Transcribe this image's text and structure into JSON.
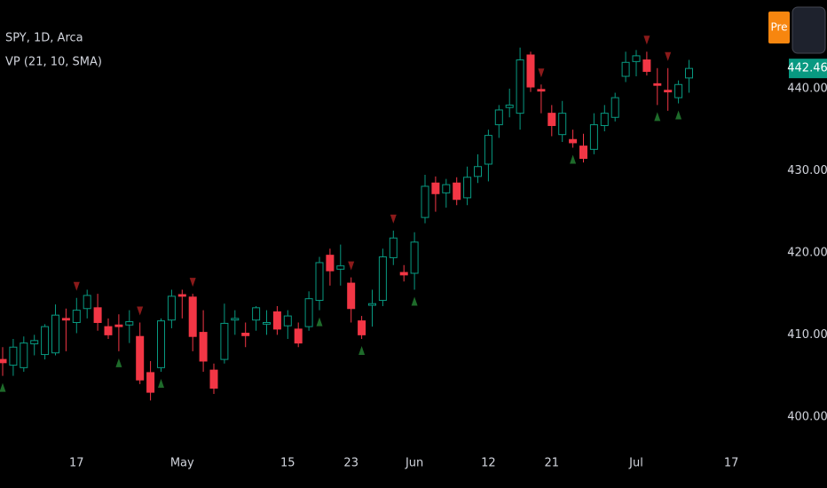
{
  "chart_data": {
    "type": "candlestick",
    "title": "SPY, 1D, Arca",
    "subtitle": "VP (21, 10, SMA)",
    "pre_button": "Pre",
    "categories": [
      null,
      null,
      null,
      null,
      null,
      null,
      null,
      "17",
      null,
      null,
      null,
      null,
      null,
      null,
      null,
      null,
      null,
      "May",
      null,
      null,
      null,
      null,
      null,
      null,
      null,
      null,
      null,
      "15",
      null,
      null,
      null,
      null,
      null,
      "23",
      null,
      null,
      null,
      null,
      null,
      "Jun",
      null,
      null,
      null,
      null,
      null,
      null,
      "12",
      null,
      null,
      null,
      null,
      null,
      "21",
      null,
      null,
      null,
      null,
      null,
      null,
      null,
      "Jul",
      null,
      null,
      null,
      null,
      null,
      null,
      null,
      null,
      "17"
    ],
    "series": [
      {
        "name": "open",
        "values": [
          407,
          406.3,
          406,
          408.9,
          407.6,
          407.8,
          412,
          411.5,
          413.2,
          413.3,
          411,
          411.2,
          411.2,
          409.8,
          405.4,
          406,
          411.8,
          414.9,
          414.6,
          410.3,
          405.7,
          407,
          411.8,
          410.2,
          411.8,
          411.3,
          412.8,
          411.1,
          410.7,
          411,
          414.2,
          419.7,
          418,
          416.3,
          411.7,
          413.6,
          414.2,
          419.4,
          417.6,
          417.5,
          424.3,
          428.5,
          427.3,
          428.5,
          426.7,
          429.3,
          430.8,
          435.6,
          437.7,
          437,
          444.1,
          439.9,
          437,
          434.4,
          433.8,
          433,
          432.6,
          435.5,
          436.5,
          441.5,
          443.3,
          443.5,
          440.6,
          439.8,
          438.9,
          441.3,
          null,
          null,
          null,
          null
        ]
      },
      {
        "name": "high",
        "values": [
          408.5,
          409.5,
          409.8,
          410,
          411.3,
          413.7,
          413.2,
          414.5,
          415.5,
          415,
          412,
          412.5,
          413,
          411.5,
          406.8,
          412,
          415.5,
          415.5,
          415,
          413,
          406.5,
          413.8,
          413,
          411.5,
          413.5,
          413,
          413.5,
          413,
          411.5,
          415.3,
          419.5,
          420.5,
          421,
          417,
          412.3,
          415.5,
          420.5,
          422.7,
          418.5,
          422.5,
          429.5,
          429.3,
          429,
          429.2,
          430.5,
          432,
          435,
          438,
          440,
          445,
          444.5,
          440.5,
          438,
          438.5,
          435,
          434.5,
          437,
          438,
          439.5,
          444.5,
          444.7,
          444.5,
          442.5,
          442.5,
          441,
          443.5,
          null,
          null,
          null,
          null
        ]
      },
      {
        "name": "low",
        "values": [
          405,
          405,
          405.5,
          407.5,
          407,
          407.5,
          408,
          410.2,
          412,
          410.5,
          409.5,
          408,
          409,
          404,
          402,
          405.5,
          410.8,
          412,
          408,
          405.5,
          402.8,
          406.5,
          410,
          408.5,
          410.5,
          410,
          410,
          409.5,
          408.5,
          410.5,
          413,
          416,
          416,
          411.5,
          409.5,
          411,
          413.5,
          418.5,
          416.5,
          415.5,
          423.6,
          425,
          425.5,
          425.8,
          425.8,
          428.5,
          428.7,
          434,
          436.5,
          435,
          439.6,
          437,
          434.2,
          433.5,
          432.8,
          431,
          432,
          434.8,
          436,
          440.8,
          441.5,
          441.6,
          438,
          437.3,
          438.2,
          439.5,
          null,
          null,
          null,
          null
        ]
      },
      {
        "name": "close",
        "values": [
          406.6,
          408.5,
          409,
          409.3,
          411,
          412.4,
          411.8,
          413,
          414.8,
          411.5,
          410,
          411,
          411.6,
          404.5,
          403,
          411.7,
          414.7,
          414.7,
          409.8,
          406.8,
          403.5,
          411.4,
          412,
          409.9,
          413.3,
          411.5,
          410.7,
          412.3,
          409,
          414.4,
          418.8,
          417.8,
          418.4,
          413.2,
          410,
          413.8,
          419.5,
          421.8,
          417.3,
          421.3,
          428.1,
          427.2,
          428.3,
          426.5,
          429.2,
          430.5,
          434.3,
          437.4,
          438,
          443.5,
          440.2,
          439.7,
          435.5,
          437,
          433.4,
          431.5,
          435.6,
          437,
          438.9,
          443.2,
          444,
          442.1,
          440.4,
          439.6,
          440.5,
          442.46,
          null,
          null,
          null,
          null
        ]
      }
    ],
    "signals": {
      "down": [
        7,
        13,
        18,
        33,
        37,
        51,
        61,
        63
      ],
      "up": [
        0,
        11,
        15,
        30,
        34,
        39,
        54,
        62,
        64
      ]
    },
    "up_color": "#089981",
    "down_color": "#f23645",
    "signal_down_color": "#8b1a1a",
    "signal_up_color": "#1e6b2a",
    "last_price_color": "#089981",
    "pre_color": "#f7860f",
    "ylim": [
      396.2,
      450.8
    ],
    "yticks": [
      {
        "value": 400,
        "label": "400.00"
      },
      {
        "value": 410,
        "label": "410.00"
      },
      {
        "value": 420,
        "label": "420.00"
      },
      {
        "value": 430,
        "label": "430.00"
      },
      {
        "value": 440,
        "label": "440.00"
      }
    ],
    "grid": false
  }
}
